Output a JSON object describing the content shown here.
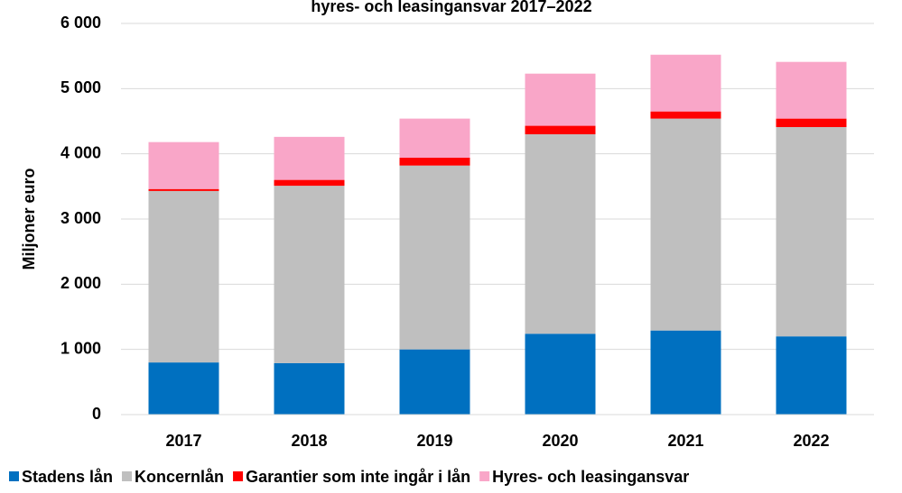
{
  "chart_data": {
    "type": "stacked_bar",
    "title": "hyres- och leasingansvar 2017–2022",
    "y_label": "Miljoner euro",
    "categories": [
      "2017",
      "2018",
      "2019",
      "2020",
      "2021",
      "2022"
    ],
    "series": [
      {
        "name": "Stadens lån",
        "color": "#0070c0",
        "values": [
          800,
          790,
          1000,
          1240,
          1290,
          1200
        ]
      },
      {
        "name": "Koncernlån",
        "color": "#bfbfbf",
        "values": [
          2630,
          2720,
          2820,
          3060,
          3250,
          3210
        ]
      },
      {
        "name": "Garantier som inte ingår i lån",
        "color": "#ff0000",
        "values": [
          30,
          90,
          120,
          130,
          110,
          130
        ]
      },
      {
        "name": "Hyres- och leasingansvar",
        "color": "#f9a6c8",
        "values": [
          720,
          660,
          600,
          800,
          870,
          870
        ]
      }
    ],
    "ylim": [
      0,
      6000
    ],
    "yticks": [
      0,
      {
        "value": 1000,
        "label": "1 000"
      },
      {
        "value": 2000,
        "label": "2 000"
      },
      {
        "value": 3000,
        "label": "3 000"
      },
      {
        "value": 4000,
        "label": "4 000"
      },
      {
        "value": 5000,
        "label": "5 000"
      },
      {
        "value": 6000,
        "label": "6 000"
      }
    ],
    "grid": true,
    "legend": "bottom"
  }
}
